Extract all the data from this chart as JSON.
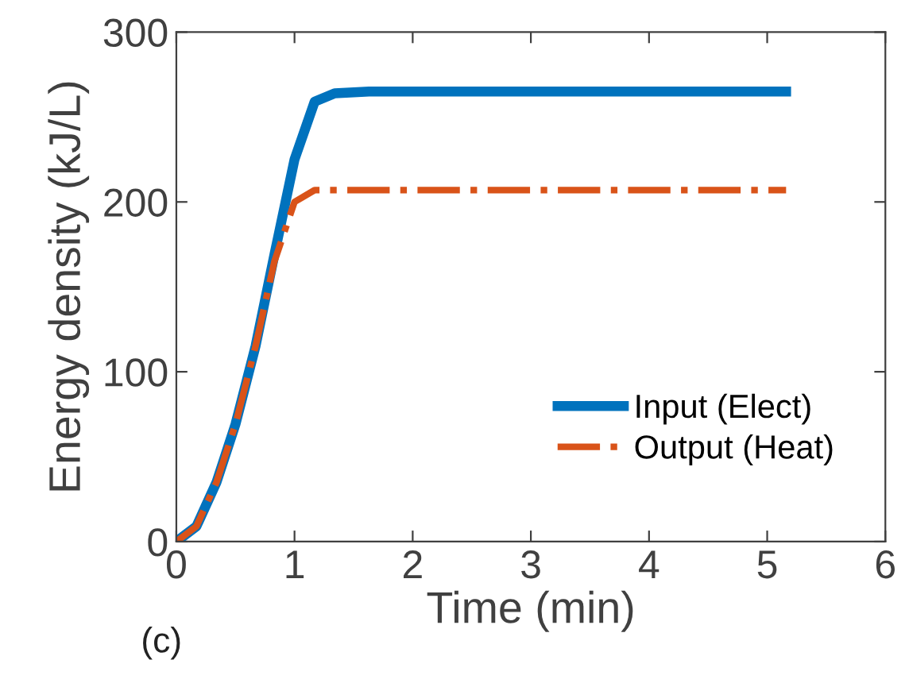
{
  "chart_data": {
    "type": "line",
    "xlabel": "Time (min)",
    "ylabel": "Energy density (kJ/L)",
    "xlim": [
      0,
      6
    ],
    "ylim": [
      0,
      300
    ],
    "xticks": [
      0,
      1,
      2,
      3,
      4,
      5,
      6
    ],
    "yticks": [
      0,
      100,
      200,
      300
    ],
    "grid": false,
    "legend": "bottom right",
    "marker": "none",
    "annotations": [
      "(c)"
    ],
    "series": [
      {
        "name": "Input (Elect)",
        "color": "#0072bd",
        "line_style": "solid",
        "x": [
          0,
          0.17,
          0.34,
          0.5,
          0.67,
          0.83,
          1.0,
          1.17,
          1.34,
          1.63,
          5.16
        ],
        "values": [
          0,
          9,
          35,
          69,
          115,
          169,
          225,
          259,
          264,
          265,
          265
        ]
      },
      {
        "name": "Output (Heat)",
        "color": "#d95319",
        "line_style": "dashdot",
        "x": [
          0,
          0.17,
          0.34,
          0.5,
          0.67,
          0.83,
          1.0,
          1.17,
          5.16
        ],
        "values": [
          0,
          9,
          35,
          69,
          115,
          165,
          200,
          207,
          207
        ]
      }
    ]
  }
}
